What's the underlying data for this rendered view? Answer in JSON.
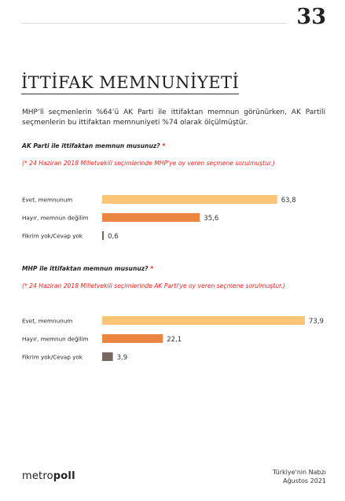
{
  "page": {
    "number": "33",
    "section_title": "İTTİFAK MEMNUNİYETİ",
    "intro": "MHP’li seçmenlerin %64’ü AK Parti ile ittifaktan memnun görünürken, AK Partili seçmenlerin bu ittifaktan memnuniyeti %74 olarak ölçülmüştür."
  },
  "colors": {
    "evet": "#fbc477",
    "hayir": "#ea8642",
    "fikrim": "#77685f",
    "note_red": "#e8231a"
  },
  "chart_data": [
    {
      "type": "bar",
      "orientation": "horizontal",
      "question": "AK Parti ile ittifaktan memnun musunuz?",
      "question_marker": "*",
      "note": "(* 24 Haziran 2018 Milletvekili seçimlerinde MHP'ye oy veren seçmene sorulmuştur.)",
      "categories": [
        "Evet, memnunum",
        "Hayır, memnun değilim",
        "Fikrim yok/Cevap yok"
      ],
      "values": [
        63.8,
        35.6,
        0.6
      ],
      "value_labels": [
        "63,8",
        "35,6",
        "0,6"
      ],
      "xlim": [
        0,
        73.9
      ]
    },
    {
      "type": "bar",
      "orientation": "horizontal",
      "question": "MHP ile ittifaktan memnun musunuz?",
      "question_marker": "*",
      "note": "(* 24 Haziran 2018 Milletvekili seçimlerinde AK Parti'ye oy veren seçmene sorulmuştur.)",
      "categories": [
        "Evet, memnunum",
        "Hayır, memnun değilim",
        "Fikrim yok/Cevap yok"
      ],
      "values": [
        73.9,
        22.1,
        3.9
      ],
      "value_labels": [
        "73,9",
        "22,1",
        "3,9"
      ],
      "xlim": [
        0,
        73.9
      ]
    }
  ],
  "footer": {
    "logo_light": "metro",
    "logo_bold": "poll",
    "source_line1": "Türkiye'nin Nabzı",
    "source_line2": "Ağustos 2021"
  }
}
